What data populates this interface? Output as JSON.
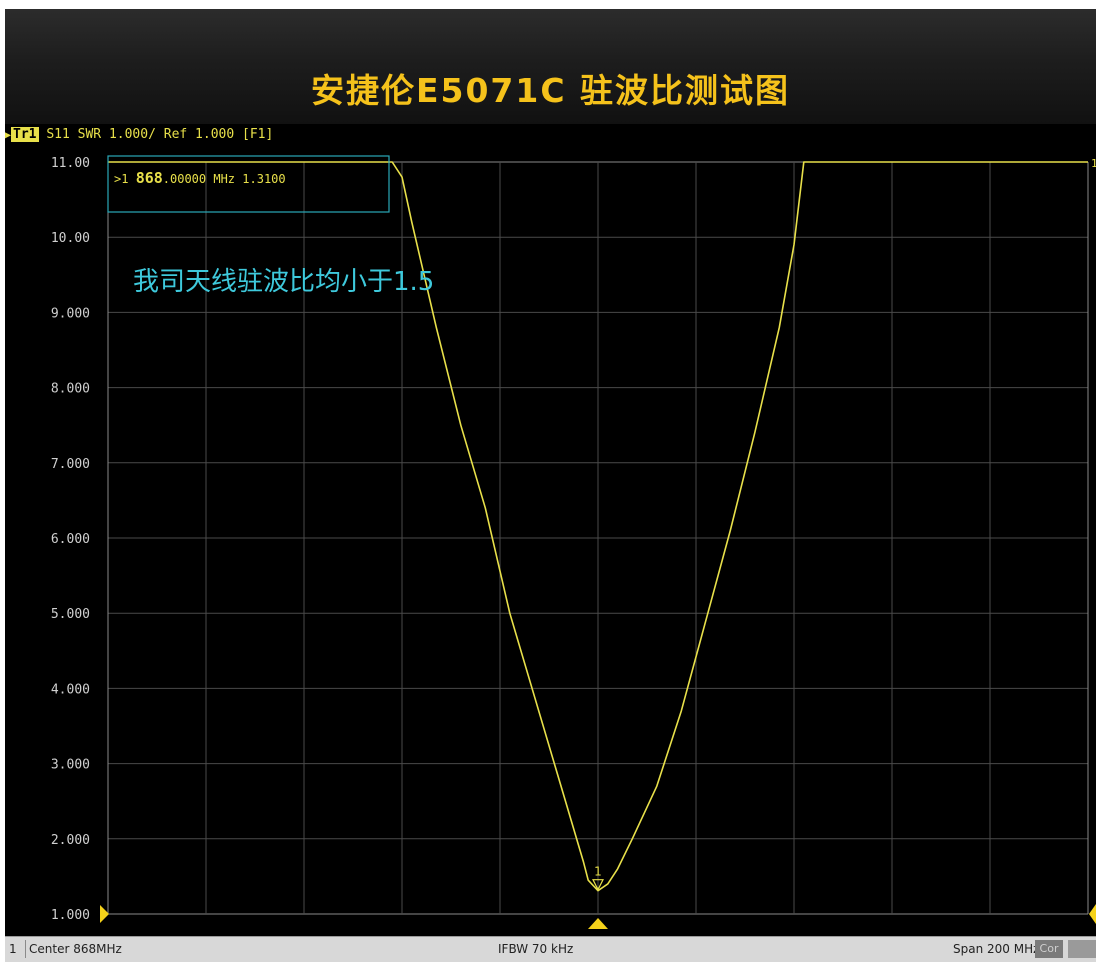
{
  "title": "安捷伦E5071C  驻波比测试图",
  "trace_header": {
    "trace_label": "Tr1",
    "text": "S11 SWR 1.000/ Ref 1.000 [F1]"
  },
  "marker_readout": {
    "prefix": ">1",
    "freq_bold": "868",
    "freq_rest": ".00000 MHz",
    "value": "1.3100"
  },
  "annotation": "我司天线驻波比均小于1.5",
  "marker_label": "1",
  "right_edge_label": "1",
  "status": {
    "channel": "1",
    "center": "Center 868MHz",
    "ifbw": "IFBW 70 kHz",
    "span": "Span 200 MHz",
    "cor": "Cor"
  },
  "colors": {
    "trace": "#e8e04a",
    "grid": "#4a4a4a",
    "readout_box": "#2aa8b8",
    "annotation": "#3ec9dc",
    "title": "#f5c21b"
  },
  "chart_data": {
    "type": "line",
    "xlabel": "",
    "ylabel": "",
    "xlim": [
      768,
      968
    ],
    "ylim": [
      1,
      11
    ],
    "y_ticks": [
      "1.000",
      "2.000",
      "3.000",
      "4.000",
      "5.000",
      "6.000",
      "7.000",
      "8.000",
      "9.000",
      "10.00",
      "11.00"
    ],
    "x_divisions": 10,
    "grid": true,
    "series": [
      {
        "x": [
          768,
          826,
          828,
          830,
          835,
          840,
          845,
          850,
          855,
          860,
          865,
          866,
          868,
          870,
          872,
          875,
          880,
          885,
          890,
          895,
          900,
          905,
          908,
          910,
          968
        ],
        "y": [
          11.0,
          11.0,
          10.8,
          10.2,
          8.8,
          7.5,
          6.4,
          5.0,
          3.9,
          2.8,
          1.7,
          1.45,
          1.31,
          1.4,
          1.6,
          2.0,
          2.7,
          3.7,
          4.9,
          6.1,
          7.4,
          8.8,
          9.9,
          11.0,
          11.0
        ]
      }
    ],
    "marker": {
      "x": 868,
      "y": 1.31
    }
  }
}
